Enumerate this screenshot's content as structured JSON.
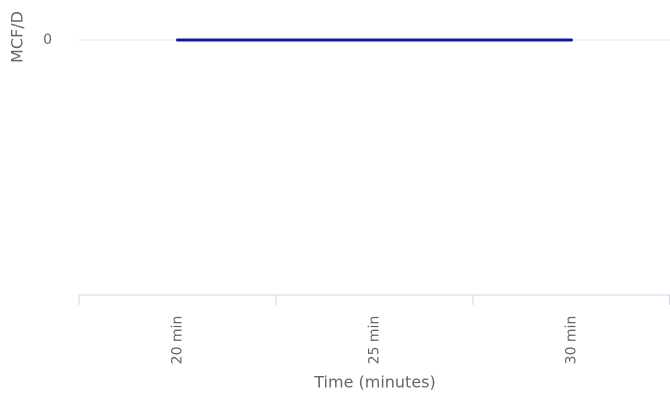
{
  "chart_data": {
    "type": "line",
    "y_title": "MCF/D",
    "x_title": "Time (minutes)",
    "categories": [
      "20 min",
      "25 min",
      "30 min"
    ],
    "series": [
      {
        "name": "MCF/D",
        "color": "#0f1a9e",
        "values": [
          0,
          0,
          0
        ]
      }
    ],
    "ylim": [
      -1,
      0
    ],
    "yticks": [
      0
    ],
    "grid": true
  }
}
